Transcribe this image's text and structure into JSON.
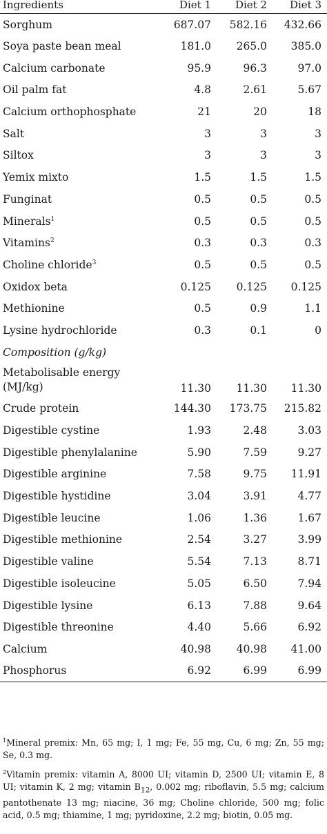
{
  "table": {
    "headers": [
      "Ingredients",
      "Diet 1",
      "Diet 2",
      "Diet 3"
    ],
    "ingredients": [
      {
        "label": "Sorghum",
        "sup": "",
        "values": [
          "687.07",
          "582.16",
          "432.66"
        ]
      },
      {
        "label": "Soya paste bean meal",
        "sup": "",
        "values": [
          "181.0",
          "265.0",
          "385.0"
        ]
      },
      {
        "label": "Calcium carbonate",
        "sup": "",
        "values": [
          "95.9",
          "96.3",
          "97.0"
        ]
      },
      {
        "label": "Oil palm fat",
        "sup": "",
        "values": [
          "4.8",
          "2.61",
          "5.67"
        ]
      },
      {
        "label": "Calcium orthophosphate",
        "sup": "",
        "values": [
          "21",
          "20",
          "18"
        ]
      },
      {
        "label": "Salt",
        "sup": "",
        "values": [
          "3",
          "3",
          "3"
        ]
      },
      {
        "label": "Siltox",
        "sup": "",
        "values": [
          "3",
          "3",
          "3"
        ]
      },
      {
        "label": "Yemix mixto",
        "sup": "",
        "values": [
          "1.5",
          "1.5",
          "1.5"
        ]
      },
      {
        "label": "Funginat",
        "sup": "",
        "values": [
          "0.5",
          "0.5",
          "0.5"
        ]
      },
      {
        "label": "Minerals",
        "sup": "1",
        "values": [
          "0.5",
          "0.5",
          "0.5"
        ]
      },
      {
        "label": "Vitamins",
        "sup": "2",
        "values": [
          "0.3",
          "0.3",
          "0.3"
        ]
      },
      {
        "label": "Choline chloride",
        "sup": "3",
        "values": [
          "0.5",
          "0.5",
          "0.5"
        ]
      },
      {
        "label": "Oxidox beta",
        "sup": "",
        "values": [
          "0.125",
          "0.125",
          "0.125"
        ]
      },
      {
        "label": "Methionine",
        "sup": "",
        "values": [
          "0.5",
          "0.9",
          "1.1"
        ]
      },
      {
        "label": "Lysine hydrochloride",
        "sup": "",
        "values": [
          "0.3",
          "0.1",
          "0"
        ]
      }
    ],
    "composition_heading": "Composition (g/kg)",
    "composition": [
      {
        "label_line1": "Metabolisable energy",
        "label_line2": "(MJ/kg)",
        "values": [
          "11.30",
          "11.30",
          "11.30"
        ]
      },
      {
        "label": "Crude protein",
        "values": [
          "144.30",
          "173.75",
          "215.82"
        ]
      },
      {
        "label": "Digestible cystine",
        "values": [
          "1.93",
          "2.48",
          "3.03"
        ]
      },
      {
        "label": "Digestible phenylalanine",
        "values": [
          "5.90",
          "7.59",
          "9.27"
        ]
      },
      {
        "label": "Digestible arginine",
        "values": [
          "7.58",
          "9.75",
          "11.91"
        ]
      },
      {
        "label": "Digestible hystidine",
        "values": [
          "3.04",
          "3.91",
          "4.77"
        ]
      },
      {
        "label": "Digestible leucine",
        "values": [
          "1.06",
          "1.36",
          "1.67"
        ]
      },
      {
        "label": "Digestible methionine",
        "values": [
          "2.54",
          "3.27",
          "3.99"
        ]
      },
      {
        "label": "Digestible valine",
        "values": [
          "5.54",
          "7.13",
          "8.71"
        ]
      },
      {
        "label": "Digestible isoleucine",
        "values": [
          "5.05",
          "6.50",
          "7.94"
        ]
      },
      {
        "label": "Digestible lysine",
        "values": [
          "6.13",
          "7.88",
          "9.64"
        ]
      },
      {
        "label": "Digestible threonine",
        "values": [
          "4.40",
          "5.66",
          "6.92"
        ]
      },
      {
        "label": "Calcium",
        "values": [
          "40.98",
          "40.98",
          "41.00"
        ]
      },
      {
        "label": "Phosphorus",
        "values": [
          "6.92",
          "6.99",
          "6.99"
        ]
      }
    ]
  },
  "footnotes": {
    "note1": {
      "marker": "1",
      "text": "Mineral premix: Mn, 65 mg; I, 1 mg; Fe, 55 mg, Cu, 6 mg; Zn, 55 mg; Se, 0.3 mg."
    },
    "note2": {
      "marker": "2",
      "text_before": "Vitamin premix: vitamin A, 8000 UI; vitamin D, 2500 UI; vitamin E, 8 UI; vitamin K, 2 mg; vitamin B",
      "subscript": "12",
      "text_after": ", 0.002 mg; riboflavin, 5.5 mg; calcium pantothenate 13 mg; niacine, 36 mg; Choline chloride, 500 mg; folic acid, 0.5 mg; thiamine, 1 mg; pyridoxine, 2.2 mg; biotin, 0.05 mg."
    }
  }
}
